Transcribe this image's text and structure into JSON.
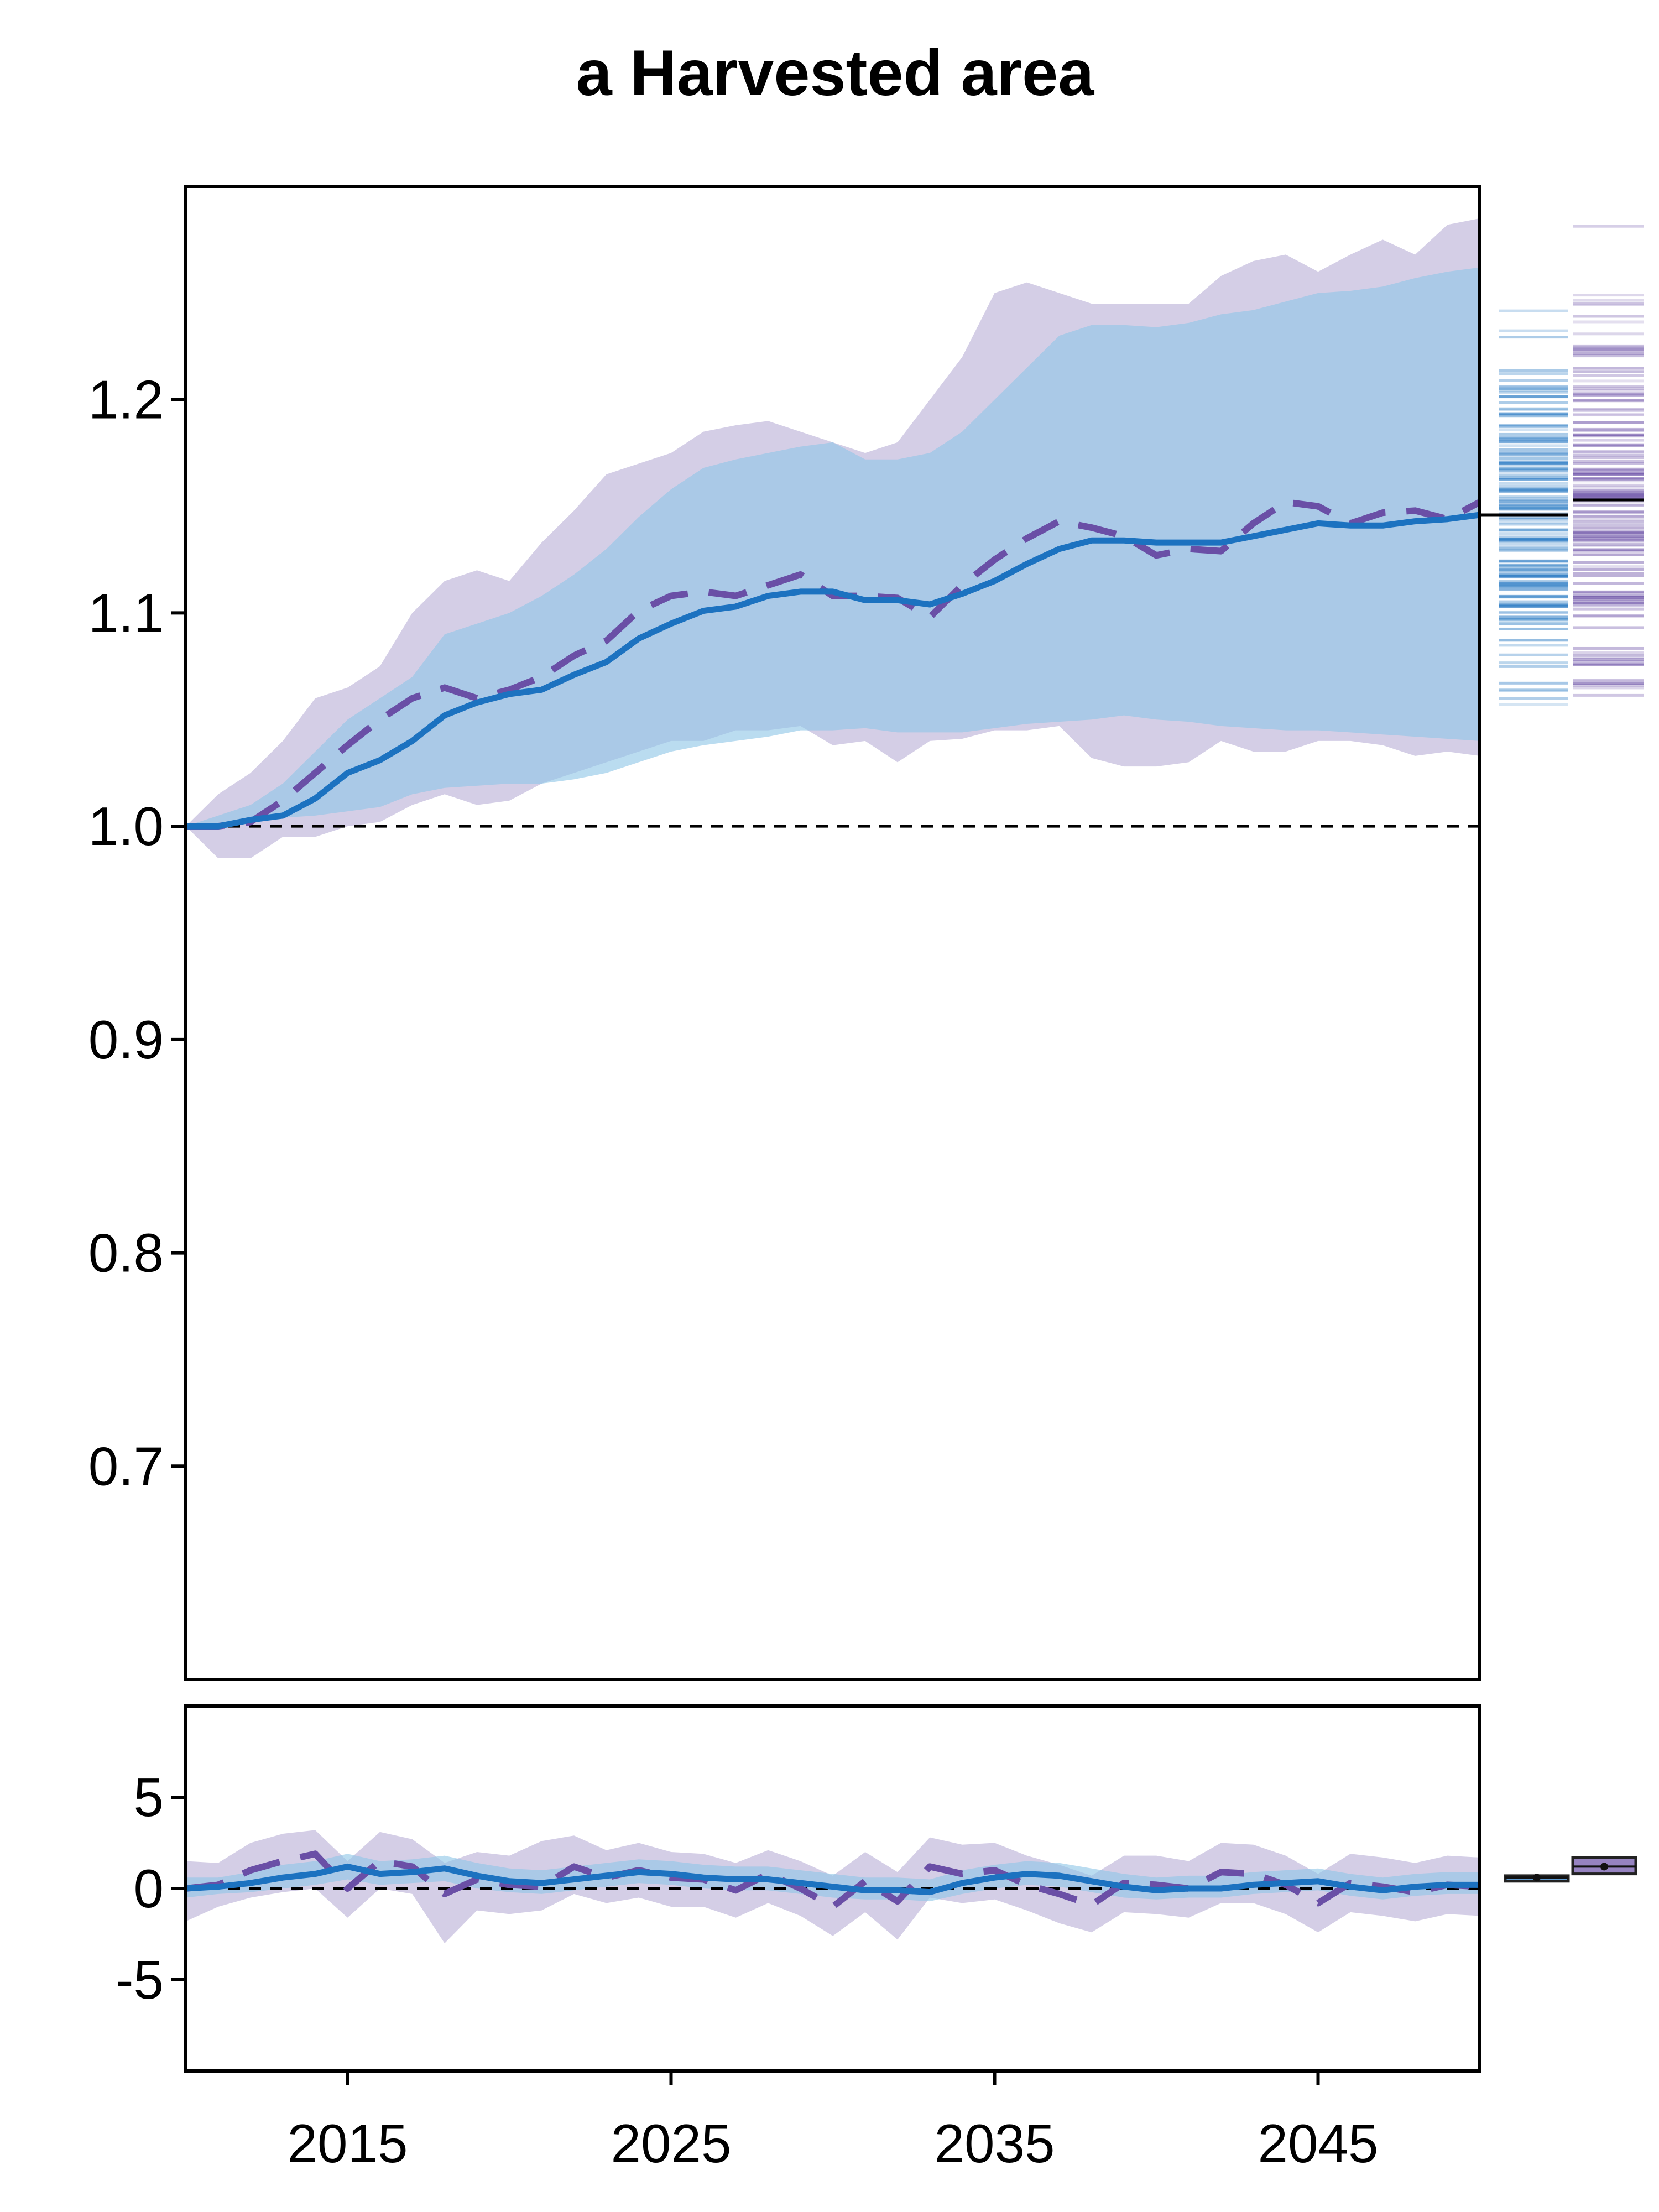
{
  "chart_data": [
    {
      "type": "line",
      "title": "a Harvested area",
      "xlabel": "",
      "ylabel": "",
      "xlim": [
        2010,
        2050
      ],
      "ylim": [
        0.6,
        1.3
      ],
      "yticks": [
        "0.7",
        "0.8",
        "0.9",
        "1.0",
        "1.1",
        "1.2"
      ],
      "reference_line": 1.0,
      "grid": false,
      "colors": {
        "solid": "#1c72c0",
        "dashed": "#6a4fa6",
        "band_solid": "#8fc6e6",
        "band_dashed": "#b7aed6",
        "band_overlap": "#b9c6e2"
      },
      "x": [
        2010,
        2011,
        2012,
        2013,
        2014,
        2015,
        2016,
        2017,
        2018,
        2019,
        2020,
        2021,
        2022,
        2023,
        2024,
        2025,
        2026,
        2027,
        2028,
        2029,
        2030,
        2031,
        2032,
        2033,
        2034,
        2035,
        2036,
        2037,
        2038,
        2039,
        2040,
        2041,
        2042,
        2043,
        2044,
        2045,
        2046,
        2047,
        2048,
        2049,
        2050
      ],
      "series": [
        {
          "style": "solid",
          "values": [
            1.0,
            1.0,
            1.003,
            1.005,
            1.013,
            1.025,
            1.031,
            1.04,
            1.052,
            1.058,
            1.062,
            1.064,
            1.071,
            1.077,
            1.088,
            1.095,
            1.101,
            1.103,
            1.108,
            1.11,
            1.11,
            1.106,
            1.106,
            1.104,
            1.109,
            1.115,
            1.123,
            1.13,
            1.134,
            1.134,
            1.133,
            1.133,
            1.133,
            1.136,
            1.139,
            1.142,
            1.141,
            1.141,
            1.143,
            1.144,
            1.146
          ],
          "band_lower": [
            1.0,
            1.0,
            1.002,
            1.004,
            1.005,
            1.007,
            1.009,
            1.015,
            1.018,
            1.019,
            1.02,
            1.02,
            1.022,
            1.025,
            1.03,
            1.035,
            1.038,
            1.04,
            1.042,
            1.045,
            1.045,
            1.046,
            1.044,
            1.044,
            1.044,
            1.046,
            1.048,
            1.049,
            1.05,
            1.052,
            1.05,
            1.049,
            1.047,
            1.046,
            1.045,
            1.045,
            1.044,
            1.043,
            1.042,
            1.041,
            1.04
          ],
          "band_upper": [
            1.0,
            1.005,
            1.01,
            1.02,
            1.035,
            1.05,
            1.06,
            1.07,
            1.09,
            1.095,
            1.1,
            1.108,
            1.118,
            1.13,
            1.145,
            1.158,
            1.168,
            1.172,
            1.175,
            1.178,
            1.18,
            1.172,
            1.172,
            1.175,
            1.185,
            1.2,
            1.215,
            1.23,
            1.235,
            1.235,
            1.234,
            1.236,
            1.24,
            1.242,
            1.246,
            1.25,
            1.251,
            1.253,
            1.257,
            1.26,
            1.262
          ]
        },
        {
          "style": "dashed",
          "values": [
            1.0,
            1.0,
            1.002,
            1.012,
            1.025,
            1.038,
            1.05,
            1.06,
            1.065,
            1.06,
            1.064,
            1.07,
            1.08,
            1.087,
            1.101,
            1.108,
            1.11,
            1.108,
            1.113,
            1.118,
            1.108,
            1.108,
            1.107,
            1.098,
            1.113,
            1.125,
            1.135,
            1.143,
            1.14,
            1.136,
            1.127,
            1.13,
            1.129,
            1.142,
            1.152,
            1.15,
            1.142,
            1.147,
            1.148,
            1.144,
            1.152
          ],
          "band_lower": [
            1.0,
            0.985,
            0.985,
            0.995,
            0.995,
            1.0,
            1.002,
            1.01,
            1.015,
            1.01,
            1.012,
            1.02,
            1.025,
            1.03,
            1.035,
            1.04,
            1.04,
            1.045,
            1.045,
            1.047,
            1.038,
            1.04,
            1.03,
            1.04,
            1.041,
            1.045,
            1.045,
            1.047,
            1.032,
            1.028,
            1.028,
            1.03,
            1.04,
            1.035,
            1.035,
            1.04,
            1.04,
            1.038,
            1.033,
            1.035,
            1.033
          ],
          "band_upper": [
            1.0,
            1.015,
            1.025,
            1.04,
            1.06,
            1.065,
            1.075,
            1.1,
            1.115,
            1.12,
            1.115,
            1.133,
            1.148,
            1.165,
            1.17,
            1.175,
            1.185,
            1.188,
            1.19,
            1.185,
            1.18,
            1.175,
            1.18,
            1.2,
            1.22,
            1.25,
            1.255,
            1.25,
            1.245,
            1.245,
            1.245,
            1.245,
            1.258,
            1.265,
            1.268,
            1.26,
            1.268,
            1.275,
            1.268,
            1.282,
            1.285
          ]
        }
      ],
      "side_distributions": [
        {
          "color": "solid",
          "min": 1.035,
          "max": 1.265,
          "median": 1.146
        },
        {
          "color": "dashed",
          "min": 1.025,
          "max": 1.29,
          "median": 1.153
        }
      ]
    },
    {
      "type": "line",
      "xlim": [
        2010,
        2050
      ],
      "ylim": [
        -10,
        10
      ],
      "xticks": [
        "2015",
        "2025",
        "2035",
        "2045"
      ],
      "yticks": [
        "-5",
        "0",
        "5"
      ],
      "reference_line": 0,
      "x": [
        2010,
        2011,
        2012,
        2013,
        2014,
        2015,
        2016,
        2017,
        2018,
        2019,
        2020,
        2021,
        2022,
        2023,
        2024,
        2025,
        2026,
        2027,
        2028,
        2029,
        2030,
        2031,
        2032,
        2033,
        2034,
        2035,
        2036,
        2037,
        2038,
        2039,
        2040,
        2041,
        2042,
        2043,
        2044,
        2045,
        2046,
        2047,
        2048,
        2049,
        2050
      ],
      "series": [
        {
          "style": "solid",
          "values": [
            0.0,
            0.1,
            0.3,
            0.6,
            0.8,
            1.2,
            0.8,
            0.9,
            1.1,
            0.7,
            0.4,
            0.3,
            0.5,
            0.7,
            0.9,
            0.8,
            0.6,
            0.5,
            0.5,
            0.3,
            0.1,
            -0.1,
            -0.1,
            -0.2,
            0.3,
            0.6,
            0.8,
            0.7,
            0.4,
            0.1,
            -0.1,
            0.0,
            0.0,
            0.2,
            0.3,
            0.4,
            0.1,
            -0.1,
            0.1,
            0.2,
            0.2
          ],
          "band_lower": [
            -0.5,
            -0.3,
            -0.2,
            0.0,
            0.2,
            0.5,
            0.2,
            0.3,
            0.4,
            0.0,
            -0.2,
            -0.3,
            -0.1,
            0.1,
            0.3,
            0.2,
            0.0,
            -0.1,
            -0.1,
            -0.3,
            -0.5,
            -0.6,
            -0.6,
            -0.7,
            -0.3,
            0.0,
            0.2,
            0.1,
            -0.2,
            -0.5,
            -0.6,
            -0.5,
            -0.5,
            -0.3,
            -0.2,
            -0.1,
            -0.4,
            -0.6,
            -0.4,
            -0.3,
            -0.3
          ],
          "band_upper": [
            0.6,
            0.6,
            0.9,
            1.3,
            1.5,
            1.9,
            1.5,
            1.6,
            1.8,
            1.4,
            1.1,
            1.0,
            1.2,
            1.4,
            1.6,
            1.5,
            1.3,
            1.2,
            1.2,
            1.0,
            0.8,
            0.6,
            0.6,
            0.5,
            1.0,
            1.3,
            1.5,
            1.4,
            1.1,
            0.8,
            0.6,
            0.7,
            0.7,
            0.9,
            1.0,
            1.1,
            0.8,
            0.6,
            0.8,
            0.9,
            0.9
          ]
        },
        {
          "style": "dashed",
          "values": [
            0.0,
            0.2,
            1.0,
            1.5,
            1.9,
            0.0,
            1.5,
            1.2,
            -0.3,
            0.5,
            0.2,
            0.1,
            1.2,
            0.6,
            1.0,
            0.6,
            0.5,
            -0.1,
            0.8,
            0.0,
            -1.0,
            0.4,
            -0.7,
            1.2,
            0.8,
            1.0,
            0.2,
            -0.3,
            -0.9,
            0.3,
            0.2,
            0.0,
            0.9,
            0.8,
            0.2,
            -0.8,
            0.3,
            0.1,
            -0.2,
            0.2,
            0.1
          ],
          "band_lower": [
            -1.8,
            -1.0,
            -0.5,
            -0.2,
            0.0,
            -1.6,
            0.0,
            -0.3,
            -3.0,
            -1.2,
            -1.4,
            -1.2,
            -0.3,
            -0.8,
            -0.5,
            -1.0,
            -1.0,
            -1.6,
            -0.8,
            -1.5,
            -2.6,
            -1.3,
            -2.8,
            -0.5,
            -0.8,
            -0.6,
            -1.2,
            -1.9,
            -2.4,
            -1.3,
            -1.4,
            -1.6,
            -0.8,
            -0.8,
            -1.4,
            -2.4,
            -1.3,
            -1.5,
            -1.8,
            -1.4,
            -1.5
          ],
          "band_upper": [
            1.5,
            1.4,
            2.5,
            3.0,
            3.2,
            1.5,
            3.1,
            2.7,
            1.4,
            2.0,
            1.8,
            2.6,
            2.9,
            2.1,
            2.5,
            2.0,
            1.9,
            1.4,
            2.1,
            1.5,
            0.7,
            2.0,
            0.9,
            2.8,
            2.4,
            2.5,
            1.8,
            1.3,
            0.7,
            1.8,
            1.8,
            1.5,
            2.5,
            2.4,
            1.8,
            0.8,
            1.9,
            1.7,
            1.4,
            1.8,
            1.7
          ]
        }
      ],
      "side_boxes": [
        {
          "color": "solid",
          "q1": 0.4,
          "median": 0.6,
          "q3": 0.7
        },
        {
          "color": "dashed",
          "q1": 0.8,
          "median": 1.2,
          "q3": 1.7
        }
      ]
    }
  ]
}
